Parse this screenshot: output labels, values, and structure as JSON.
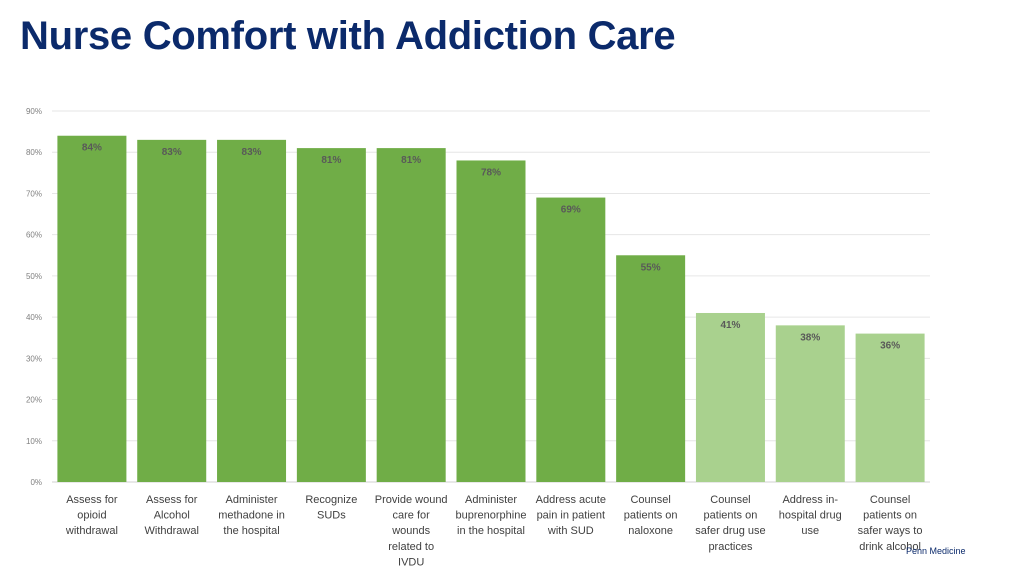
{
  "title": "Nurse Comfort with Addiction Care",
  "footer": "Penn Medicine",
  "chart_data": {
    "type": "bar",
    "title": "",
    "xlabel": "",
    "ylabel": "",
    "ylim": [
      0,
      90
    ],
    "yticks": [
      "0%",
      "10%",
      "20%",
      "30%",
      "40%",
      "50%",
      "60%",
      "70%",
      "80%",
      "90%"
    ],
    "grid": true,
    "colors": {
      "dark": "#70ad47",
      "light": "#a9d18e"
    },
    "categories": [
      [
        "Assess for",
        "opioid",
        "withdrawal"
      ],
      [
        "Assess for",
        "Alcohol",
        "Withdrawal"
      ],
      [
        "Administer",
        "methadone in",
        "the hospital"
      ],
      [
        "Recognize",
        "SUDs"
      ],
      [
        "Provide wound",
        "care for",
        "wounds",
        "related to",
        "IVDU"
      ],
      [
        "Administer",
        "buprenorphine",
        "in the hospital"
      ],
      [
        "Address acute",
        "pain in patient",
        "with SUD"
      ],
      [
        "Counsel",
        "patients on",
        "naloxone"
      ],
      [
        "Counsel",
        "patients on",
        "safer drug use",
        "practices"
      ],
      [
        "Address in-",
        "hospital drug",
        "use"
      ],
      [
        "Counsel",
        "patients on",
        "safer ways to",
        "drink alcohol"
      ]
    ],
    "values": [
      84,
      83,
      83,
      81,
      81,
      78,
      69,
      55,
      41,
      38,
      36
    ],
    "data_labels": [
      "84%",
      "83%",
      "83%",
      "81%",
      "81%",
      "78%",
      "69%",
      "55%",
      "41%",
      "38%",
      "36%"
    ],
    "shade": [
      "dark",
      "dark",
      "dark",
      "dark",
      "dark",
      "dark",
      "dark",
      "dark",
      "light",
      "light",
      "light"
    ]
  }
}
